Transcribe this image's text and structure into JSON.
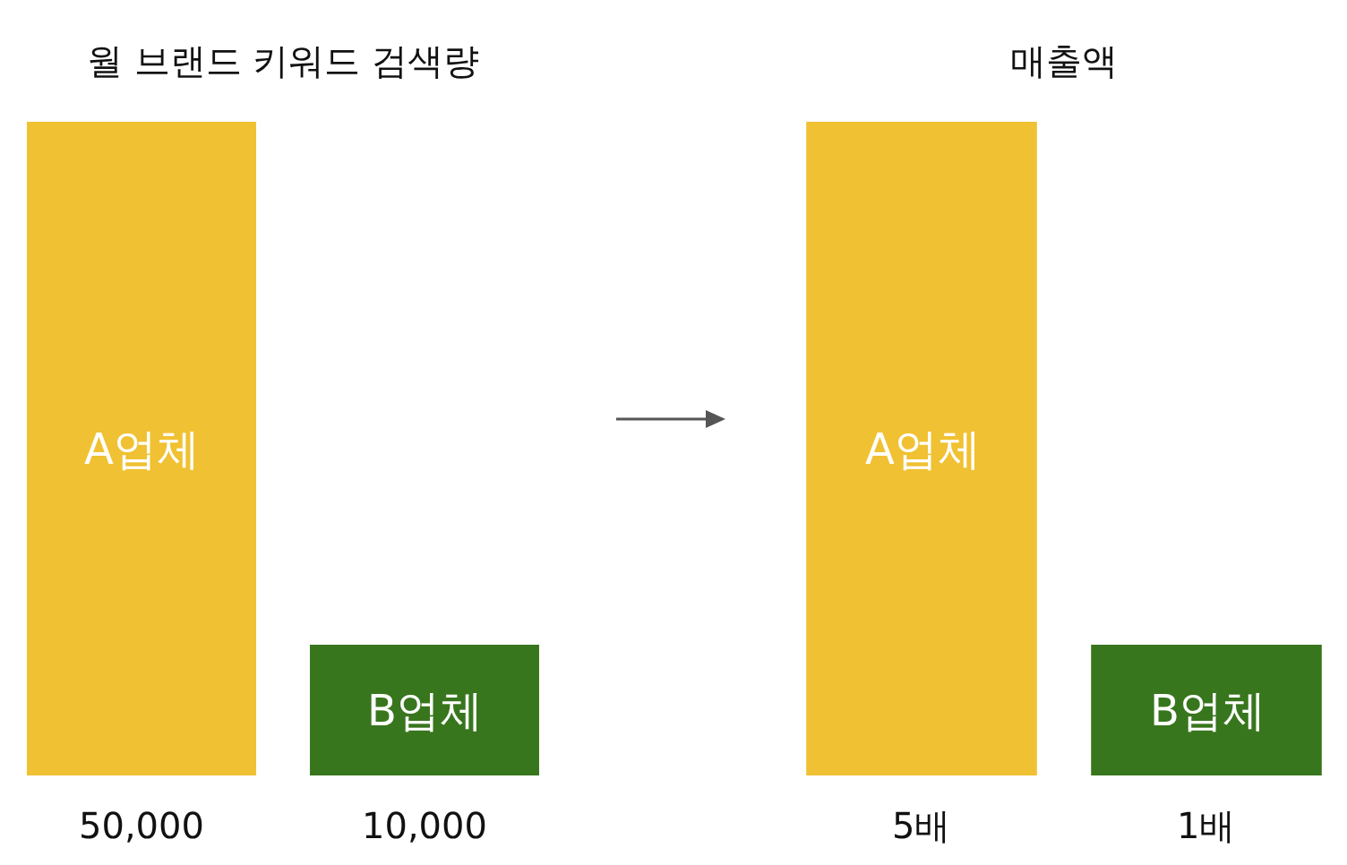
{
  "chart_data": [
    {
      "type": "bar",
      "title": "월 브랜드 키워드 검색량",
      "categories": [
        "A업체",
        "B업체"
      ],
      "values": [
        50000,
        10000
      ],
      "colors": [
        "#f0c132",
        "#38761d"
      ],
      "value_labels": [
        "50,000",
        "10,000"
      ]
    },
    {
      "type": "bar",
      "title": "매출액",
      "categories": [
        "A업체",
        "B업체"
      ],
      "values": [
        5,
        1
      ],
      "colors": [
        "#f0c132",
        "#38761d"
      ],
      "value_labels": [
        "5배",
        "1배"
      ]
    }
  ]
}
